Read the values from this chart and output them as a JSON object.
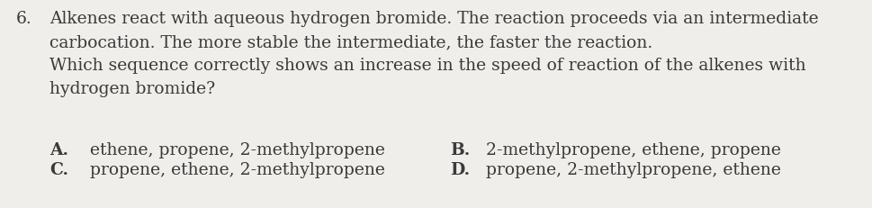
{
  "background_color": "#f0eeeb",
  "question_number": "6.",
  "line1": "Alkenes react with aqueous hydrogen bromide. The reaction proceeds via an intermediate",
  "line2": "carbocation. The more stable the intermediate, the faster the reaction.",
  "line3": "Which sequence correctly shows an increase in the speed of reaction of the alkenes with",
  "line4": "hydrogen bromide?",
  "opt_A_label": "A.",
  "opt_A_text": "ethene, propene, 2-methylpropene",
  "opt_B_label": "B.",
  "opt_B_text": "2-methylpropene, ethene, propene",
  "opt_C_label": "C.",
  "opt_C_text": "propene, ethene, 2-methylpropene",
  "opt_D_label": "D.",
  "opt_D_text": "propene, 2-methylpropene, ethene",
  "font_size_para": 13.5,
  "font_size_options": 13.5,
  "text_color": "#3a3a3a",
  "num_color": "#3a3a3a"
}
